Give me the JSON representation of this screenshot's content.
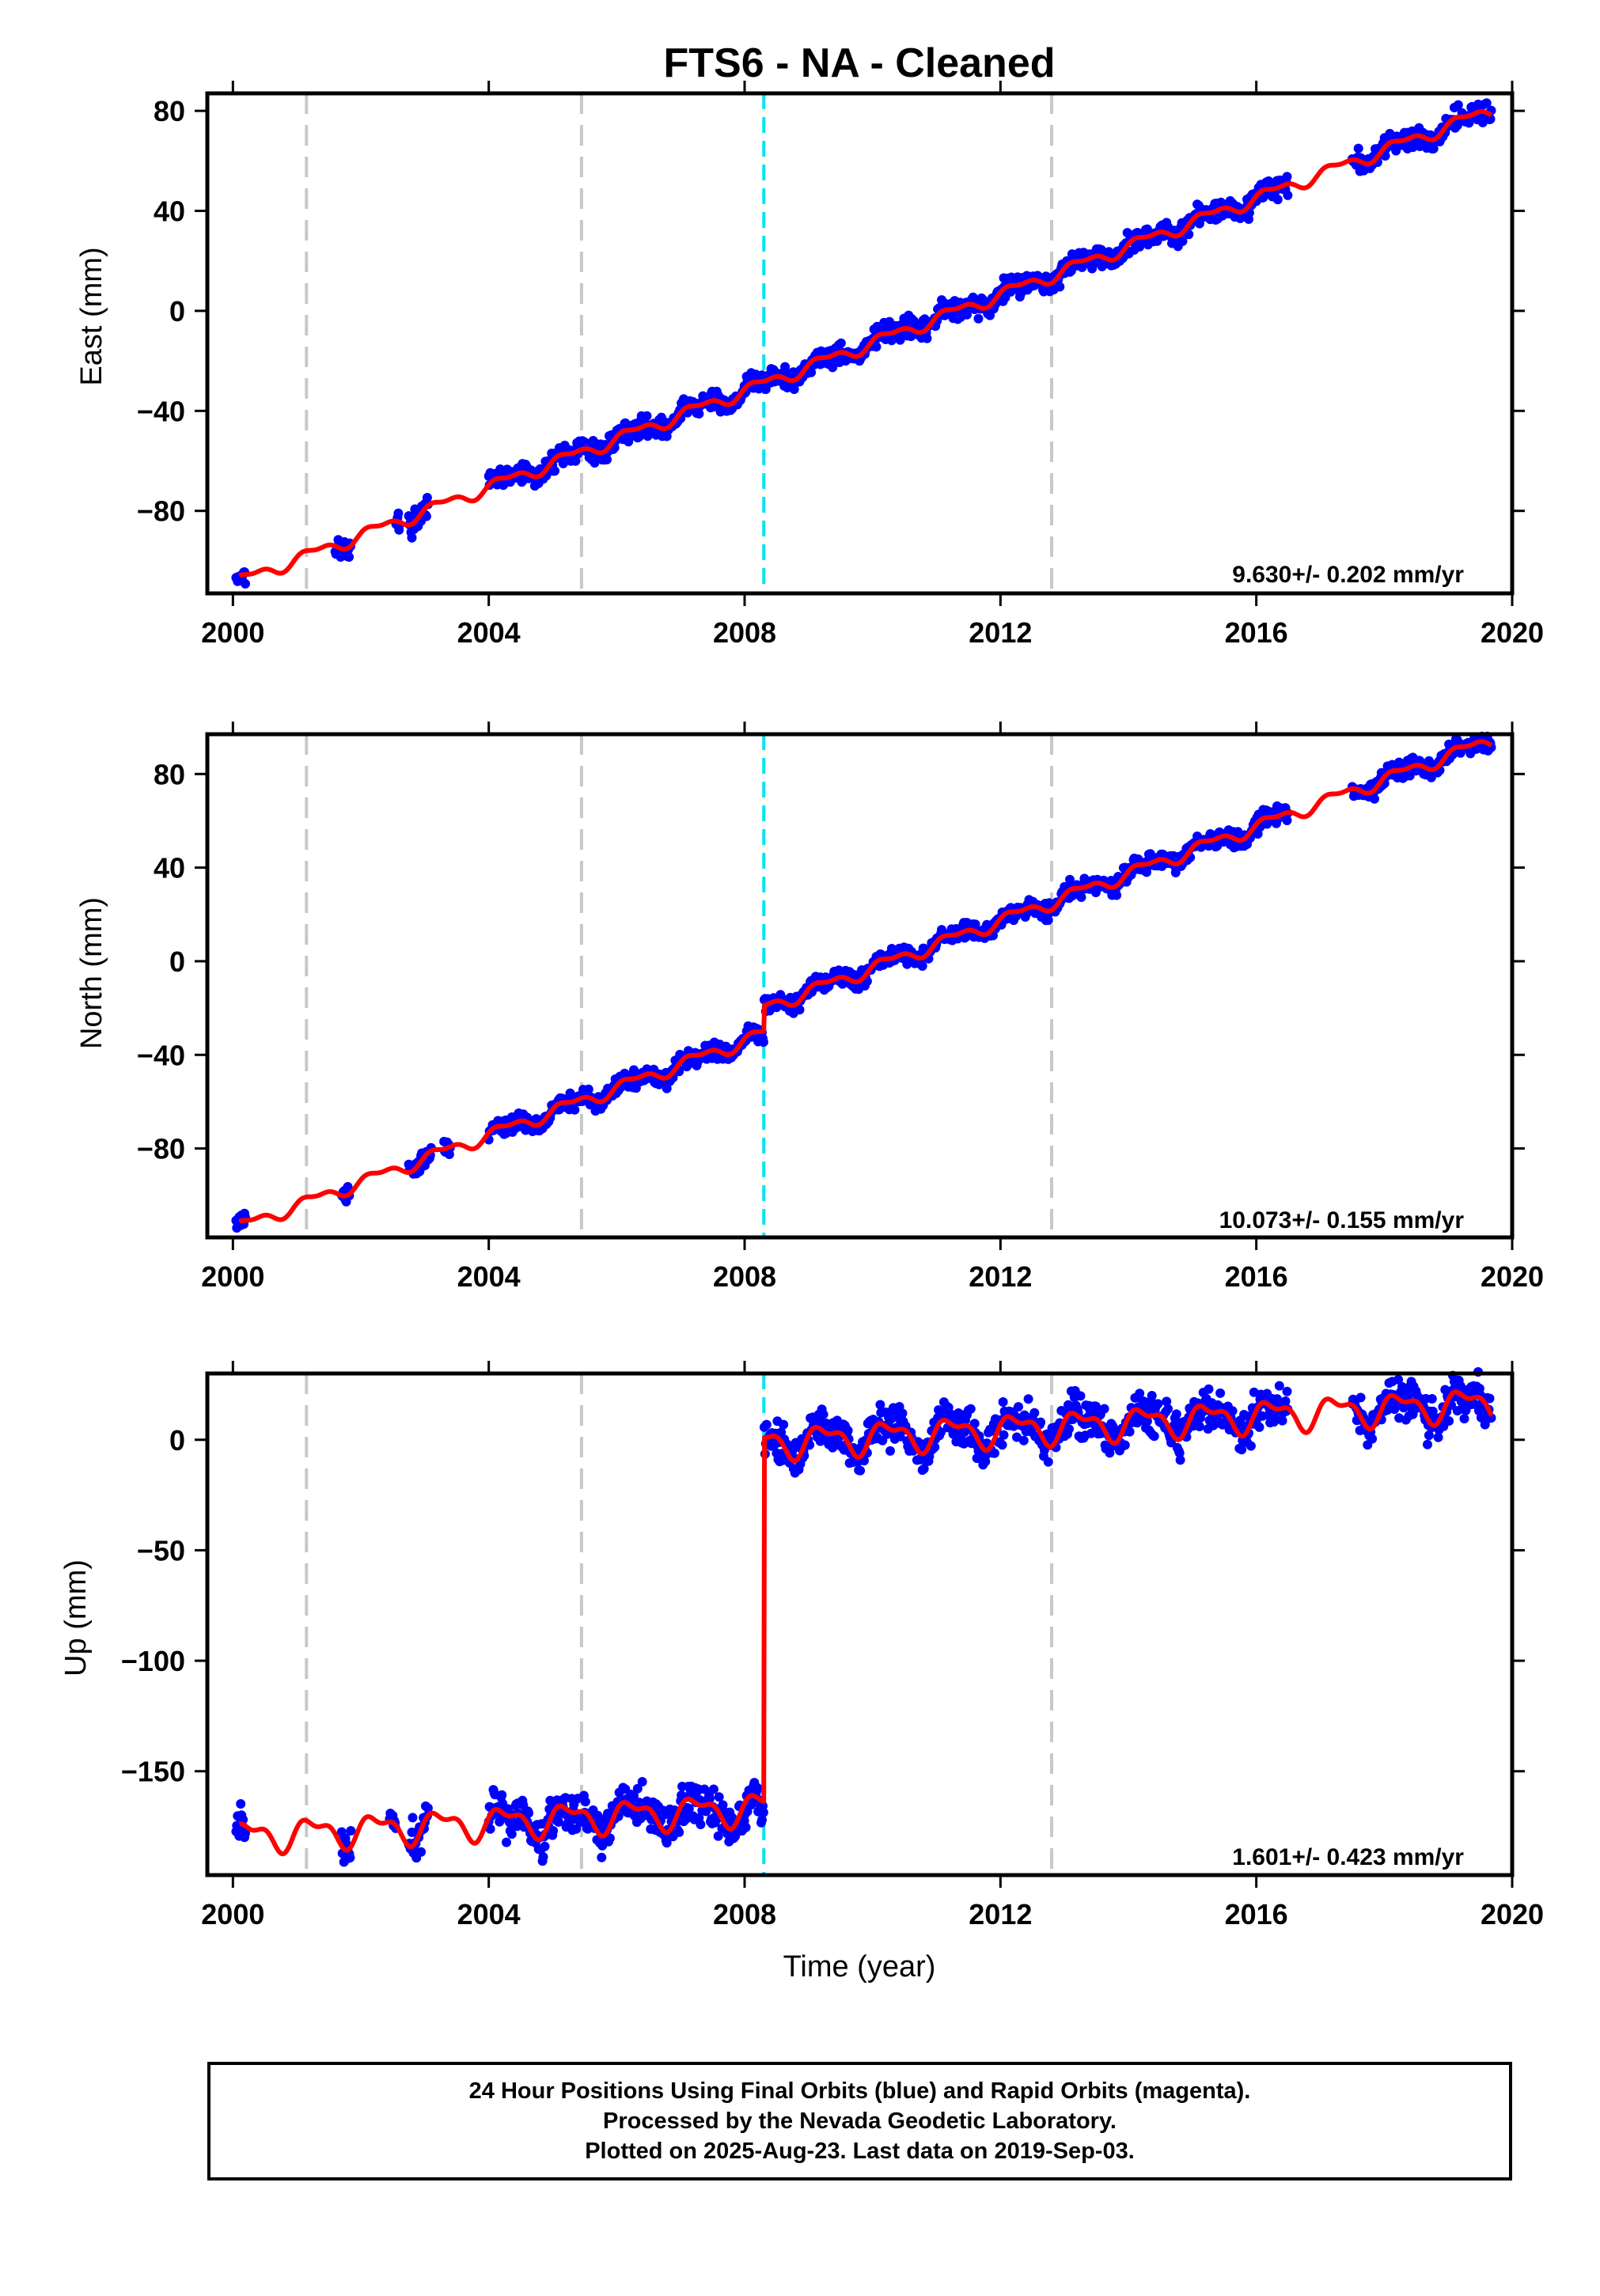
{
  "title": "FTS6  - NA - Cleaned",
  "x_axis_label": "Time (year)",
  "footer": {
    "line1": "24 Hour Positions Using Final Orbits (blue) and Rapid Orbits (magenta).",
    "line2": "Processed by the Nevada Geodetic Laboratory.",
    "line3": "Plotted on 2025-Aug-23. Last data on 2019-Sep-03."
  },
  "colors": {
    "data_points": "#0000ff",
    "model_fit": "#ff0000",
    "equipment_change": "#c8c8c8",
    "earthquake_offset": "#00e5ee"
  },
  "chart_data": [
    {
      "type": "scatter",
      "panel": "east",
      "ylabel": "East (mm)",
      "rate_text": "9.630+/- 0.202 mm/yr",
      "xlim": [
        1999.6,
        2020.0
      ],
      "ylim": [
        -113,
        87
      ],
      "xticks": [
        2000,
        2004,
        2008,
        2012,
        2016,
        2020
      ],
      "yticks": [
        -80,
        -40,
        0,
        40,
        80
      ],
      "gray_dashed_lines": [
        2001.15,
        2005.45,
        2012.8
      ],
      "cyan_dashed_lines": [
        2008.3
      ],
      "offsets": [
        {
          "t": 2008.3,
          "d": 0
        }
      ],
      "trend_ref": [
        2008,
        -32
      ],
      "rate": 9.63,
      "seasonal_amp": 2.2,
      "noise": 2.0,
      "segments": [
        [
          2000.05,
          2000.2
        ],
        [
          2001.6,
          2001.85
        ],
        [
          2002.55,
          2002.62
        ],
        [
          2002.75,
          2003.05
        ],
        [
          2004.0,
          2016.5
        ],
        [
          2017.5,
          2019.68
        ]
      ],
      "model_range": [
        2000.1,
        2019.68
      ],
      "series": [
        {
          "name": "24 Hour Positions (Final Orbits)",
          "points": [
            [
              2000.1,
              -106
            ],
            [
              2001.7,
              -97
            ],
            [
              2002.9,
              -80
            ],
            [
              2004.05,
              -68
            ],
            [
              2006.0,
              -56
            ],
            [
              2008.0,
              -35
            ],
            [
              2010.0,
              -13
            ],
            [
              2012.0,
              6
            ],
            [
              2014.0,
              27
            ],
            [
              2016.0,
              47
            ],
            [
              2018.0,
              67
            ],
            [
              2019.65,
              81
            ]
          ]
        },
        {
          "name": "Model fit",
          "points": [
            [
              2000.1,
              -106
            ],
            [
              2008.0,
              -32
            ],
            [
              2012.0,
              6
            ],
            [
              2016.0,
              46
            ],
            [
              2019.68,
              81
            ]
          ]
        }
      ]
    },
    {
      "type": "scatter",
      "panel": "north",
      "ylabel": "North (mm)",
      "rate_text": "10.073+/- 0.155 mm/yr",
      "xlim": [
        1999.6,
        2020.0
      ],
      "ylim": [
        -118,
        97
      ],
      "xticks": [
        2000,
        2004,
        2008,
        2012,
        2016,
        2020
      ],
      "yticks": [
        -80,
        -40,
        0,
        40,
        80
      ],
      "gray_dashed_lines": [
        2001.15,
        2005.45,
        2012.8
      ],
      "cyan_dashed_lines": [
        2008.3
      ],
      "offsets": [
        {
          "t": 2008.3,
          "d": 11
        }
      ],
      "trend_ref": [
        2008,
        -34
      ],
      "rate": 10.07,
      "seasonal_amp": 2.4,
      "noise": 1.8,
      "segments": [
        [
          2000.05,
          2000.2
        ],
        [
          2001.7,
          2001.82
        ],
        [
          2002.75,
          2003.1
        ],
        [
          2003.3,
          2003.4
        ],
        [
          2004.0,
          2016.5
        ],
        [
          2017.5,
          2019.68
        ]
      ],
      "model_range": [
        2000.1,
        2019.68
      ],
      "series": [
        {
          "name": "24 Hour Positions (Final Orbits)",
          "points": [
            [
              2000.1,
              -110
            ],
            [
              2001.75,
              -94
            ],
            [
              2002.9,
              -84
            ],
            [
              2004.05,
              -71
            ],
            [
              2006.0,
              -54
            ],
            [
              2008.0,
              -36
            ],
            [
              2008.4,
              -22
            ],
            [
              2010.0,
              -8
            ],
            [
              2012.0,
              13
            ],
            [
              2014.0,
              30
            ],
            [
              2016.0,
              50
            ],
            [
              2018.0,
              72
            ],
            [
              2019.65,
              89
            ]
          ]
        },
        {
          "name": "Model fit",
          "points": [
            [
              2000.1,
              -108
            ],
            [
              2008.0,
              -34
            ],
            [
              2008.3,
              -22
            ],
            [
              2012.0,
              13
            ],
            [
              2016.0,
              51
            ],
            [
              2019.68,
              89
            ]
          ]
        }
      ]
    },
    {
      "type": "scatter",
      "panel": "up",
      "ylabel": "Up (mm)",
      "rate_text": "1.601+/- 0.423 mm/yr",
      "xlim": [
        1999.6,
        2020.0
      ],
      "ylim": [
        -197,
        30
      ],
      "xticks": [
        2000,
        2004,
        2008,
        2012,
        2016,
        2020
      ],
      "yticks": [
        -150,
        -100,
        -50,
        0
      ],
      "gray_dashed_lines": [
        2001.15,
        2005.45,
        2012.8
      ],
      "cyan_dashed_lines": [
        2008.3
      ],
      "offsets": [
        {
          "t": 2008.3,
          "d": 165
        }
      ],
      "trend_ref": [
        2008,
        -167
      ],
      "rate": 1.6,
      "seasonal_amp": 6.0,
      "noise": 4.5,
      "segments": [
        [
          2000.05,
          2000.2
        ],
        [
          2001.7,
          2001.85
        ],
        [
          2002.45,
          2002.55
        ],
        [
          2002.75,
          2003.05
        ],
        [
          2004.0,
          2016.5
        ],
        [
          2017.5,
          2019.68
        ]
      ],
      "model_range": [
        2000.1,
        2019.68
      ],
      "series": [
        {
          "name": "24 Hour Positions (Final Orbits)",
          "points": [
            [
              2000.1,
              -183
            ],
            [
              2001.75,
              -170
            ],
            [
              2002.9,
              -165
            ],
            [
              2004.05,
              -173
            ],
            [
              2006.0,
              -168
            ],
            [
              2008.0,
              -163
            ],
            [
              2008.4,
              -2
            ],
            [
              2010.0,
              2
            ],
            [
              2012.0,
              6
            ],
            [
              2014.0,
              5
            ],
            [
              2016.0,
              8
            ],
            [
              2018.0,
              8
            ],
            [
              2019.65,
              15
            ]
          ]
        },
        {
          "name": "Model fit",
          "points": [
            [
              2000.1,
              -183
            ],
            [
              2008.3,
              -163
            ],
            [
              2008.32,
              -5
            ],
            [
              2012.0,
              5
            ],
            [
              2016.0,
              7
            ],
            [
              2019.68,
              17
            ]
          ]
        }
      ]
    }
  ]
}
